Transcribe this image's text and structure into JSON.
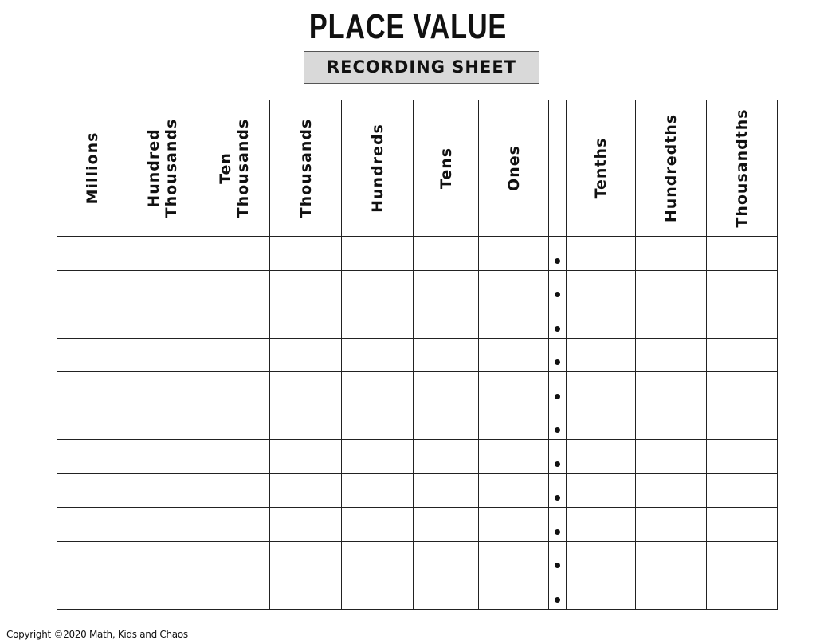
{
  "title": "PLACE VALUE",
  "subtitle": "RECORDING SHEET",
  "columns": [
    {
      "label": "Millions",
      "decimal_point": false
    },
    {
      "label": "Hundred\nThousands",
      "decimal_point": false
    },
    {
      "label": "Ten\nThousands",
      "decimal_point": false
    },
    {
      "label": "Thousands",
      "decimal_point": false
    },
    {
      "label": "Hundreds",
      "decimal_point": false
    },
    {
      "label": "Tens",
      "decimal_point": false
    },
    {
      "label": "Ones",
      "decimal_point": false
    },
    {
      "label": "",
      "decimal_point": true
    },
    {
      "label": "Tenths",
      "decimal_point": false
    },
    {
      "label": "Hundredths",
      "decimal_point": false
    },
    {
      "label": "Thousandths",
      "decimal_point": false
    }
  ],
  "row_count": 11,
  "copyright": "Copyright ©2020 Math, Kids and Chaos"
}
